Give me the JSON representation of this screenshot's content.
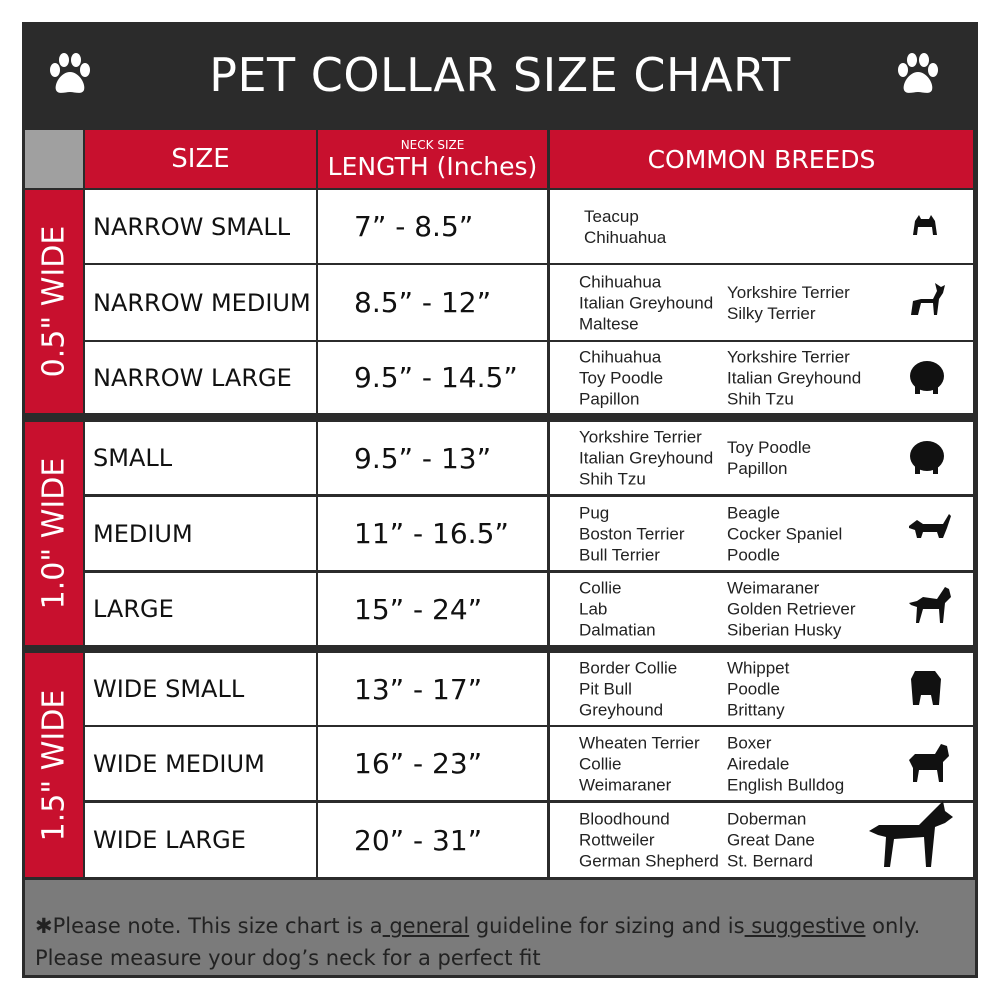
{
  "title": "PET COLLAR SIZE CHART",
  "headers": {
    "size": "SIZE",
    "neck_small": "NECK SIZE",
    "length": "LENGTH (Inches)",
    "breeds": "COMMON BREEDS"
  },
  "groups": [
    "0.5\" WIDE",
    "1.0\" WIDE",
    "1.5\" WIDE"
  ],
  "rows": [
    {
      "size": "NARROW SMALL",
      "length": "7” - 8.5”",
      "c1": [
        "Teacup",
        "Chihuahua"
      ],
      "c2": [],
      "dog": "yorkie-icon"
    },
    {
      "size": "NARROW MEDIUM",
      "length": "8.5” - 12”",
      "c1": [
        "Chihuahua",
        "Italian Greyhound",
        "Maltese"
      ],
      "c2": [
        "Yorkshire Terrier",
        "Silky Terrier"
      ],
      "dog": "chihuahua-icon"
    },
    {
      "size": "NARROW LARGE",
      "length": "9.5” - 14.5”",
      "c1": [
        "Chihuahua",
        "Toy Poodle",
        "Papillon"
      ],
      "c2": [
        "Yorkshire Terrier",
        "Italian Greyhound",
        "Shih Tzu"
      ],
      "dog": "pomeranian-icon"
    },
    {
      "size": "SMALL",
      "length": "9.5” - 13”",
      "c1": [
        "Yorkshire Terrier",
        "Italian Greyhound",
        "Shih Tzu"
      ],
      "c2": [
        "Toy Poodle",
        "Papillon"
      ],
      "dog": "pomeranian-icon"
    },
    {
      "size": "MEDIUM",
      "length": "11” - 16.5”",
      "c1": [
        "Pug",
        "Boston Terrier",
        "Bull Terrier"
      ],
      "c2": [
        "Beagle",
        "Cocker Spaniel",
        "Poodle"
      ],
      "dog": "dachshund-icon"
    },
    {
      "size": "LARGE",
      "length": "15” - 24”",
      "c1": [
        "Collie",
        "Lab",
        "Dalmatian"
      ],
      "c2": [
        "Weimaraner",
        "Golden Retriever",
        "Siberian Husky"
      ],
      "dog": "shepherd-icon"
    },
    {
      "size": "WIDE SMALL",
      "length": "13” - 17”",
      "c1": [
        "Border Collie",
        "Pit Bull",
        "Greyhound"
      ],
      "c2": [
        "Whippet",
        "Poodle",
        "Brittany"
      ],
      "dog": "bulldog-icon"
    },
    {
      "size": "WIDE MEDIUM",
      "length": "16” - 23”",
      "c1": [
        "Wheaten Terrier",
        "Collie",
        "Weimaraner"
      ],
      "c2": [
        "Boxer",
        "Airedale",
        "English Bulldog"
      ],
      "dog": "pitbull-icon"
    },
    {
      "size": "WIDE LARGE",
      "length": "20” - 31”",
      "c1": [
        "Bloodhound",
        "Rottweiler",
        "German Shepherd"
      ],
      "c2": [
        "Doberman",
        "Great Dane",
        "St. Bernard"
      ],
      "dog": "doberman-icon"
    }
  ],
  "footer": {
    "p1": "✱Please note. This size chart is a",
    "u1": " general",
    "p2": " guideline for sizing and is",
    "u2": " suggestive",
    "p3": " only.",
    "line2": "Please measure your dog’s neck for a perfect fit"
  },
  "colors": {
    "red": "#c8102e",
    "dark": "#2b2b2b",
    "gray": "#7b7b7b"
  }
}
